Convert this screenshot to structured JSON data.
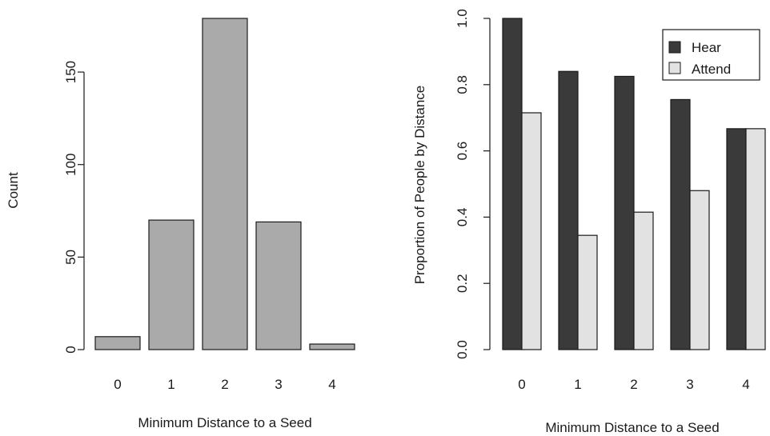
{
  "chart_data": [
    {
      "type": "bar",
      "categories": [
        "0",
        "1",
        "2",
        "3",
        "4"
      ],
      "values": [
        7,
        70,
        179,
        69,
        3
      ],
      "title": "",
      "xlabel": "Minimum Distance to a Seed",
      "ylabel": "Count",
      "ylim": [
        0,
        179
      ],
      "yticks": [
        "0",
        "50",
        "100",
        "150"
      ],
      "bar_color": "#aaaaaa",
      "grid": false
    },
    {
      "type": "bar",
      "categories": [
        "0",
        "1",
        "2",
        "3",
        "4"
      ],
      "series": [
        {
          "name": "Hear",
          "color": "#3a3a3a",
          "values": [
            1.0,
            0.84,
            0.825,
            0.755,
            0.667
          ]
        },
        {
          "name": "Attend",
          "color": "#e2e2e2",
          "values": [
            0.715,
            0.345,
            0.415,
            0.48,
            0.667
          ]
        }
      ],
      "title": "",
      "xlabel": "Minimum Distance to a Seed",
      "ylabel": "Proportion of People by Distance",
      "ylim": [
        0,
        1.0
      ],
      "yticks": [
        "0.0",
        "0.2",
        "0.4",
        "0.6",
        "0.8",
        "1.0"
      ],
      "legend_position": "top-right",
      "grid": false
    }
  ]
}
